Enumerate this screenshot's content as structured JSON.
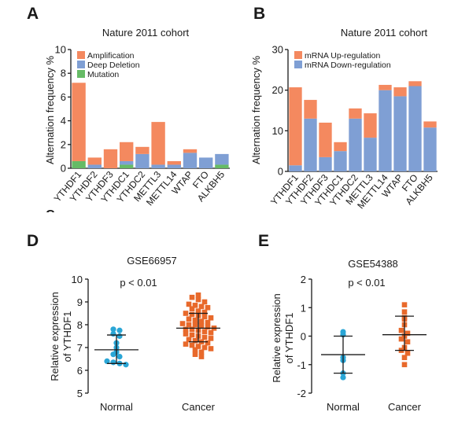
{
  "panels": {
    "A": {
      "letter": "A"
    },
    "B": {
      "letter": "B"
    },
    "C": {
      "letter": "C"
    },
    "D": {
      "letter": "D"
    },
    "E": {
      "letter": "E"
    }
  },
  "colors": {
    "amplification": "#f4895f",
    "deep_deletion": "#7f9fd4",
    "mutation": "#66bb66",
    "mrna_up": "#f4895f",
    "mrna_down": "#7f9fd4",
    "normal_points": "#2aa6d6",
    "cancer_points": "#e8692b"
  },
  "chart_data": [
    {
      "id": "A",
      "type": "bar",
      "stacked": true,
      "title": "Nature 2011 cohort",
      "ylabel": "Alternation frequency %",
      "xlabel": "",
      "ylim": [
        0,
        10
      ],
      "yticks": [
        "0",
        "2",
        "4",
        "6",
        "8",
        "10"
      ],
      "legend_position": "top-left",
      "categories": [
        "YTHDF1",
        "YTHDF2",
        "YTHDF3",
        "YTHDC1",
        "YTHDC2",
        "METTL3",
        "METTL14",
        "WTAP",
        "FTO",
        "ALKBH5"
      ],
      "series": [
        {
          "name": "Mutation",
          "color_key": "mutation",
          "values": [
            0.6,
            0,
            0,
            0.3,
            0,
            0,
            0,
            0,
            0,
            0.3
          ]
        },
        {
          "name": "Deep Deletion",
          "color_key": "deep_deletion",
          "values": [
            0,
            0.3,
            0,
            0.3,
            1.2,
            0.3,
            0.3,
            1.3,
            0.9,
            0.9
          ]
        },
        {
          "name": "Amplification",
          "color_key": "amplification",
          "values": [
            6.6,
            0.6,
            1.6,
            1.6,
            0.6,
            3.6,
            0.3,
            0.3,
            0,
            0
          ]
        }
      ],
      "legend_order": [
        "Amplification",
        "Deep Deletion",
        "Mutation"
      ]
    },
    {
      "id": "B",
      "type": "bar",
      "stacked": true,
      "title": "Nature 2011 cohort",
      "ylabel": "Alternation frequency %",
      "xlabel": "",
      "ylim": [
        0,
        30
      ],
      "yticks": [
        "0",
        "10",
        "20",
        "30"
      ],
      "legend_position": "top-left",
      "categories": [
        "YTHDF1",
        "YTHDF2",
        "YTHDF3",
        "YTHDC1",
        "YTHDC2",
        "METTL3",
        "METTL14",
        "WTAP",
        "FTO",
        "ALKBH5"
      ],
      "series": [
        {
          "name": "mRNA Down-regulation",
          "color_key": "mrna_down",
          "values": [
            1.5,
            13,
            3.5,
            5,
            13,
            8.3,
            20,
            18.5,
            21,
            10.8
          ]
        },
        {
          "name": "mRNA Up-regulation",
          "color_key": "mrna_up",
          "values": [
            19.2,
            4.6,
            8.5,
            2.2,
            2.5,
            6,
            1.3,
            2.2,
            1.2,
            1.5
          ]
        }
      ],
      "legend_order": [
        "mRNA Up-regulation",
        "mRNA Down-regulation"
      ]
    },
    {
      "id": "D",
      "type": "scatter",
      "title": "GSE66957",
      "annotation": "p < 0.01",
      "ylabel": "Relative expression of YTHDF1",
      "xlabel": "",
      "ylim": [
        5,
        10
      ],
      "yticks": [
        "5",
        "6",
        "7",
        "8",
        "9",
        "10"
      ],
      "categories": [
        "Normal",
        "Cancer"
      ],
      "groups": [
        {
          "name": "Normal",
          "color_key": "normal_points",
          "marker": "circle",
          "mean": 6.9,
          "sd_low": 6.3,
          "sd_high": 7.55,
          "values": [
            7.8,
            7.75,
            7.6,
            7.5,
            7.2,
            7.0,
            6.8,
            6.7,
            6.6,
            6.4,
            6.35,
            6.3,
            6.25
          ]
        },
        {
          "name": "Cancer",
          "color_key": "cancer_points",
          "marker": "square",
          "mean": 7.85,
          "sd_low": 7.25,
          "sd_high": 8.5,
          "values": [
            9.3,
            9.2,
            9.1,
            9.0,
            8.9,
            8.85,
            8.8,
            8.75,
            8.7,
            8.6,
            8.55,
            8.5,
            8.45,
            8.4,
            8.35,
            8.3,
            8.25,
            8.2,
            8.15,
            8.1,
            8.05,
            8.0,
            8.0,
            7.95,
            7.9,
            7.85,
            7.8,
            7.8,
            7.75,
            7.7,
            7.65,
            7.6,
            7.55,
            7.5,
            7.45,
            7.4,
            7.35,
            7.3,
            7.25,
            7.2,
            7.15,
            7.1,
            7.05,
            7.0,
            6.95,
            6.9,
            6.8,
            6.7,
            6.6
          ]
        }
      ]
    },
    {
      "id": "E",
      "type": "scatter",
      "title": "GSE54388",
      "annotation": "p < 0.01",
      "ylabel": "Relative expression of YTHDF1",
      "xlabel": "",
      "ylim": [
        -2,
        2
      ],
      "yticks": [
        "-2",
        "-1",
        "0",
        "1",
        "2"
      ],
      "categories": [
        "Normal",
        "Cancer"
      ],
      "groups": [
        {
          "name": "Normal",
          "color_key": "normal_points",
          "marker": "circle",
          "mean": -0.65,
          "sd_low": -1.3,
          "sd_high": 0.0,
          "values": [
            0.15,
            0.05,
            -0.75,
            -0.85,
            -1.3,
            -1.45
          ]
        },
        {
          "name": "Cancer",
          "color_key": "cancer_points",
          "marker": "square",
          "mean": 0.05,
          "sd_low": -0.5,
          "sd_high": 0.7,
          "values": [
            1.1,
            0.85,
            0.65,
            0.6,
            0.4,
            0.2,
            0.1,
            0.0,
            -0.1,
            -0.2,
            -0.4,
            -0.5,
            -0.6,
            -0.75,
            -1.0
          ]
        }
      ]
    }
  ]
}
